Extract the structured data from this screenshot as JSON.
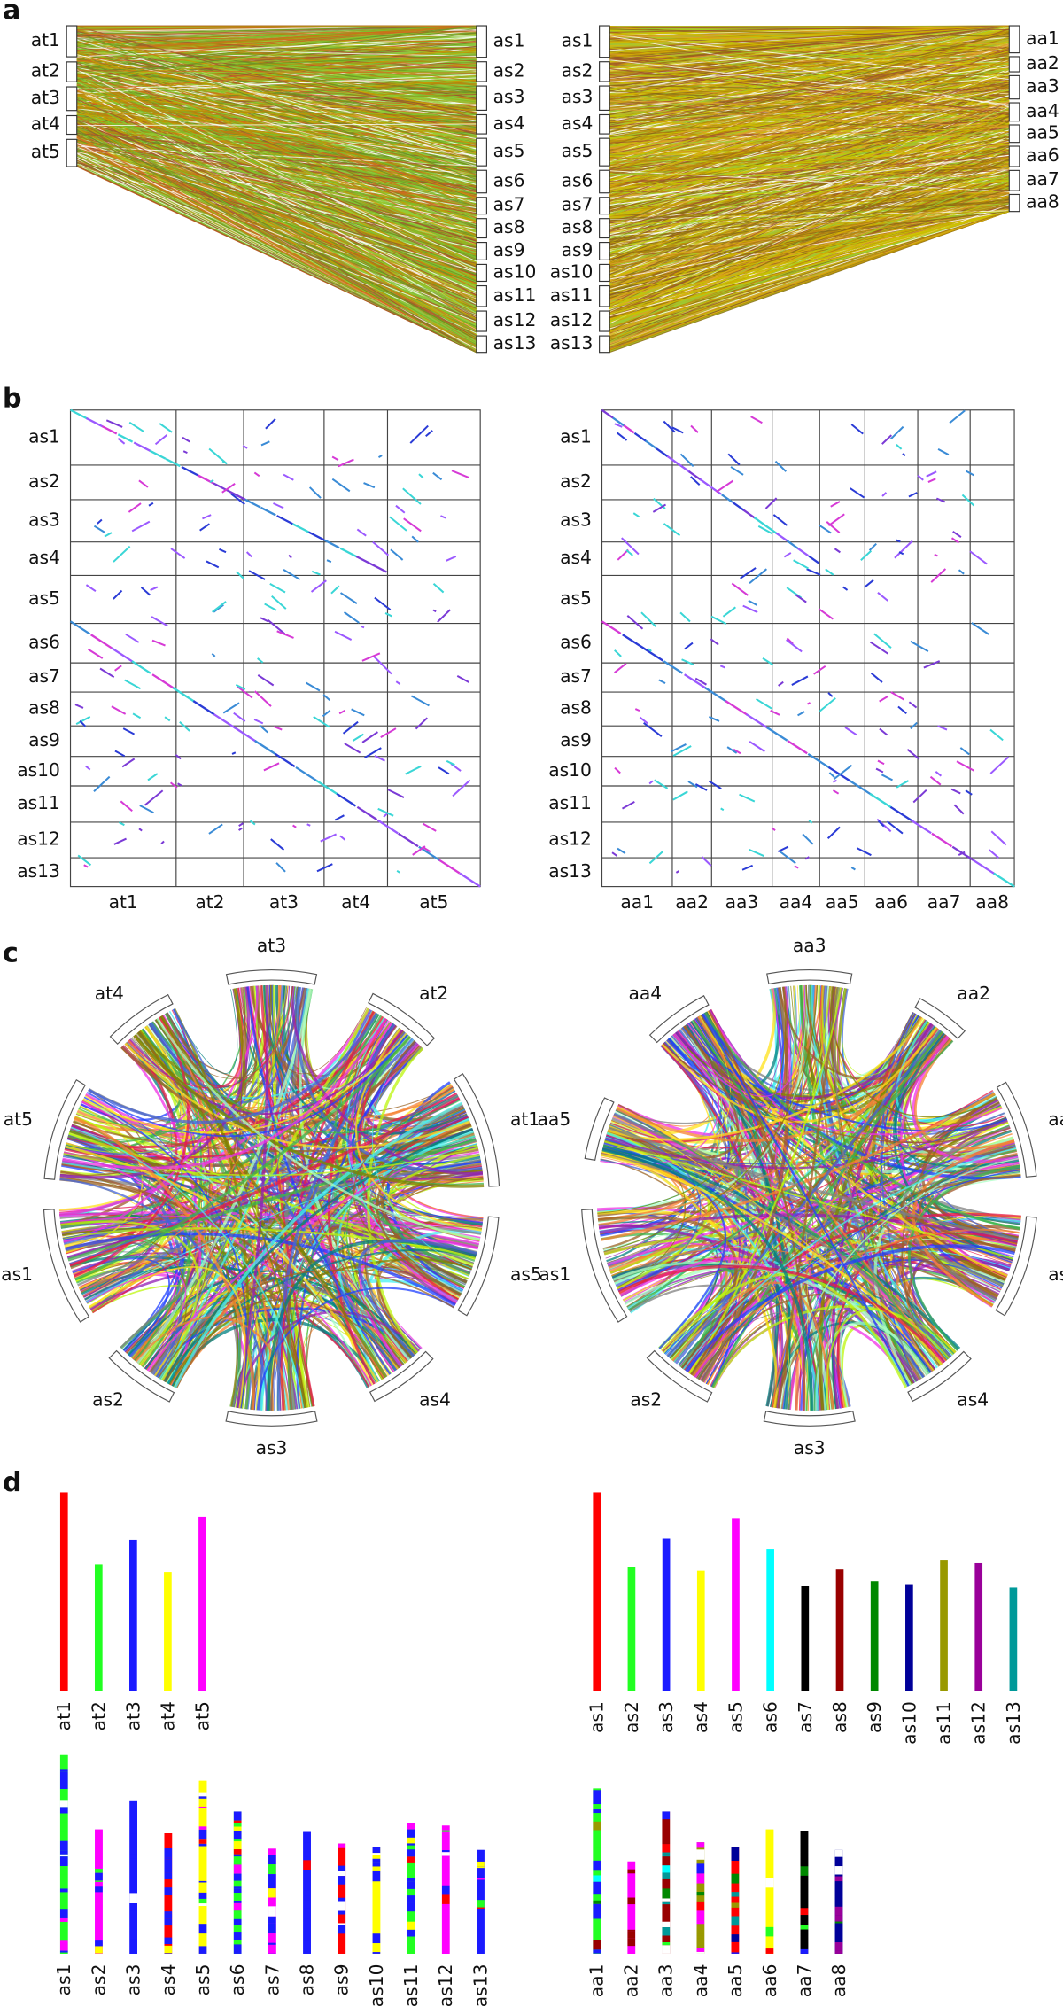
{
  "panels": [
    "a",
    "b",
    "c",
    "d"
  ],
  "genomes": {
    "at": [
      "at1",
      "at2",
      "at3",
      "at4",
      "at5"
    ],
    "as": [
      "as1",
      "as2",
      "as3",
      "as4",
      "as5",
      "as6",
      "as7",
      "as8",
      "as9",
      "as10",
      "as11",
      "as12",
      "as13"
    ],
    "aa": [
      "aa1",
      "aa2",
      "aa3",
      "aa4",
      "aa5",
      "aa6",
      "aa7",
      "aa8"
    ]
  },
  "lengths": {
    "at": [
      155,
      99,
      118,
      93,
      136
    ],
    "as": [
      155,
      97,
      119,
      94,
      135,
      111,
      82,
      95,
      86,
      83,
      102,
      100,
      81
    ],
    "aa": [
      129,
      72,
      111,
      87,
      83,
      97,
      96,
      81
    ]
  },
  "colors": {
    "at": [
      "#ff0000",
      "#22ff22",
      "#1a1aff",
      "#ffff00",
      "#ff00ff"
    ],
    "as": [
      "#ff0000",
      "#22ff22",
      "#1a1aff",
      "#ffff00",
      "#ff00ff",
      "#00ffff",
      "#000000",
      "#990000",
      "#008800",
      "#000099",
      "#999900",
      "#990099",
      "#009999"
    ]
  }
}
